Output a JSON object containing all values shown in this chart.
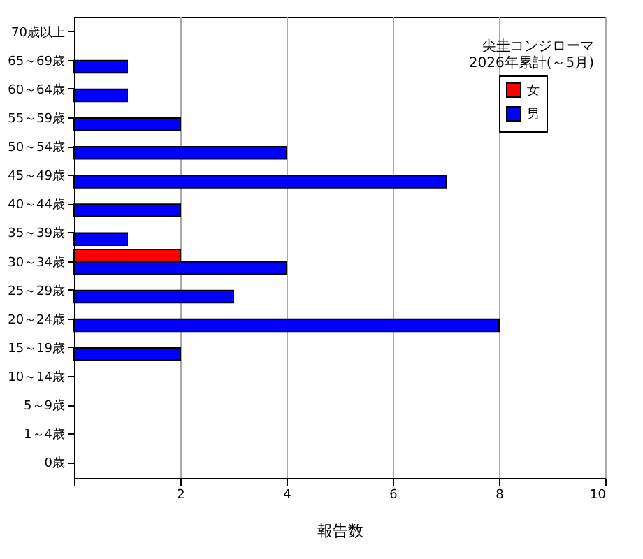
{
  "chart_data": {
    "type": "bar",
    "orientation": "horizontal",
    "title": [
      "尖圭コンジローマ",
      "2026年累計(～5月)"
    ],
    "xlabel": "報告数",
    "categories": [
      "70歳以上",
      "65～69歳",
      "60～64歳",
      "55～59歳",
      "50～54歳",
      "45～49歳",
      "40～44歳",
      "35～39歳",
      "30～34歳",
      "25～29歳",
      "20～24歳",
      "15～19歳",
      "10～14歳",
      "5～9歳",
      "1～4歳",
      "0歳"
    ],
    "series": [
      {
        "name": "女",
        "color": "#ff0000",
        "values": [
          null,
          null,
          null,
          null,
          null,
          null,
          null,
          null,
          2,
          null,
          null,
          null,
          null,
          null,
          null,
          null
        ]
      },
      {
        "name": "男",
        "color": "#0000ff",
        "values": [
          null,
          1,
          1,
          2,
          4,
          7,
          2,
          1,
          4,
          3,
          8,
          2,
          null,
          null,
          null,
          null
        ]
      }
    ],
    "xlim": [
      0,
      10
    ],
    "xticks": [
      {
        "value": 0,
        "label": null
      },
      2,
      4,
      6,
      8,
      10
    ],
    "grid": "x",
    "legend": "top right"
  }
}
